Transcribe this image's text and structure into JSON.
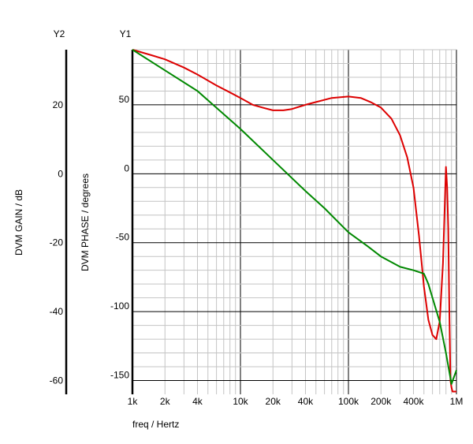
{
  "chart_data": {
    "type": "line",
    "x_scale": "log",
    "xlabel": "freq / Hertz",
    "x_ticks": [
      {
        "value": 1000,
        "label": "1k"
      },
      {
        "value": 2000,
        "label": "2k"
      },
      {
        "value": 4000,
        "label": "4k"
      },
      {
        "value": 10000,
        "label": "10k"
      },
      {
        "value": 20000,
        "label": "20k"
      },
      {
        "value": 40000,
        "label": "40k"
      },
      {
        "value": 100000,
        "label": "100k"
      },
      {
        "value": 200000,
        "label": "200k"
      },
      {
        "value": 400000,
        "label": "400k"
      },
      {
        "value": 1000000,
        "label": "1M"
      }
    ],
    "xlim": [
      1000,
      1000000
    ],
    "y1": {
      "name": "Y1",
      "label": "DVM PHASE / degrees",
      "ylim": [
        -160,
        90
      ],
      "ticks": [
        {
          "value": 50,
          "label": "50"
        },
        {
          "value": 0,
          "label": "0"
        },
        {
          "value": -50,
          "label": "-50"
        },
        {
          "value": -100,
          "label": "-100"
        },
        {
          "value": -150,
          "label": "-150"
        }
      ]
    },
    "y2": {
      "name": "Y2",
      "label": "DVM GAIN / dB",
      "ylim": [
        -64,
        36
      ],
      "ticks": [
        {
          "value": 20,
          "label": "20"
        },
        {
          "value": 0,
          "label": "0"
        },
        {
          "value": -20,
          "label": "-20"
        },
        {
          "value": -40,
          "label": "-40"
        },
        {
          "value": -60,
          "label": "-60"
        }
      ]
    },
    "grid": true,
    "series": [
      {
        "axis": "y1",
        "color": "#dd0000",
        "x": [
          1000,
          1500,
          2000,
          3000,
          4000,
          6000,
          8000,
          10000,
          13000,
          16000,
          20000,
          25000,
          30000,
          40000,
          50000,
          70000,
          100000,
          130000,
          160000,
          200000,
          250000,
          300000,
          350000,
          400000,
          450000,
          500000,
          550000,
          600000,
          650000,
          700000,
          750000,
          800000,
          820000,
          840000,
          860000,
          880000,
          900000,
          920000,
          940000,
          960000,
          980000,
          1000000
        ],
        "values": [
          90,
          86,
          83,
          77,
          72,
          64,
          59,
          55,
          50,
          48,
          46,
          46,
          47,
          50,
          52,
          55,
          56,
          55,
          52,
          48,
          40,
          28,
          12,
          -10,
          -45,
          -82,
          -106,
          -117,
          -120,
          -107,
          -65,
          5,
          -10,
          -40,
          -100,
          -150,
          -155,
          -158,
          -158,
          -158,
          -158,
          -158
        ]
      },
      {
        "axis": "y2",
        "color": "#008800",
        "x": [
          1000,
          2000,
          4000,
          10000,
          20000,
          40000,
          60000,
          100000,
          150000,
          200000,
          300000,
          400000,
          500000,
          550000,
          600000,
          700000,
          800000,
          900000,
          1000000
        ],
        "values": [
          36,
          30,
          24,
          13,
          4,
          -5,
          -10,
          -17,
          -21,
          -24,
          -27,
          -28,
          -29,
          -32,
          -36,
          -43,
          -52,
          -61,
          -57
        ]
      }
    ]
  }
}
